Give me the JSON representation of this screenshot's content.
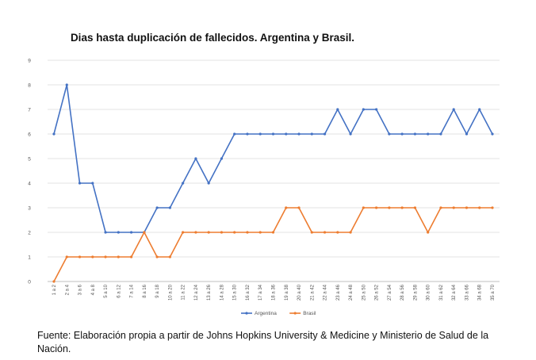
{
  "chart_data": {
    "type": "line",
    "title": "Dias hasta duplicación de fallecidos. Argentina y Brasil.",
    "xlabel": "",
    "ylabel": "",
    "ylim": [
      0,
      9
    ],
    "yticks": [
      0,
      1,
      2,
      3,
      4,
      5,
      6,
      7,
      8,
      9
    ],
    "grid": true,
    "legend_position": "bottom",
    "categories": [
      "1 a 2",
      "2 a 4",
      "3 a 6",
      "4 a 8",
      "5 a 10",
      "6 a 12",
      "7 a 14",
      "8 a 16",
      "9 a 18",
      "10 a 20",
      "11 a 22",
      "12 a 24",
      "13 a 26",
      "14 a 28",
      "15 a 30",
      "16 a 32",
      "17 a 34",
      "18 a 36",
      "19 a 38",
      "20 a 40",
      "21 a 42",
      "22 a 44",
      "23 a 46",
      "24 a 48",
      "25 a 50",
      "26 a 52",
      "27 a 54",
      "28 a 56",
      "29 a 58",
      "30 a 60",
      "31 a 62",
      "32 a 64",
      "33 a 66",
      "34 a 68",
      "35 a 70"
    ],
    "series": [
      {
        "name": "Argentina",
        "color": "#4472C4",
        "values": [
          6,
          8,
          4,
          4,
          2,
          2,
          2,
          2,
          3,
          3,
          4,
          5,
          4,
          5,
          6,
          6,
          6,
          6,
          6,
          6,
          6,
          6,
          7,
          6,
          7,
          7,
          6,
          6,
          6,
          6,
          6,
          7,
          6,
          7,
          6
        ]
      },
      {
        "name": "Brasil",
        "color": "#ED7D31",
        "values": [
          0,
          1,
          1,
          1,
          1,
          1,
          1,
          2,
          1,
          1,
          2,
          2,
          2,
          2,
          2,
          2,
          2,
          2,
          3,
          3,
          2,
          2,
          2,
          2,
          3,
          3,
          3,
          3,
          3,
          2,
          3,
          3,
          3,
          3,
          3
        ]
      }
    ]
  },
  "caption": {
    "text": "Fuente: Elaboración propia a partir de Johns Hopkins University & Medicine y Ministerio de Salud de la Nación."
  }
}
